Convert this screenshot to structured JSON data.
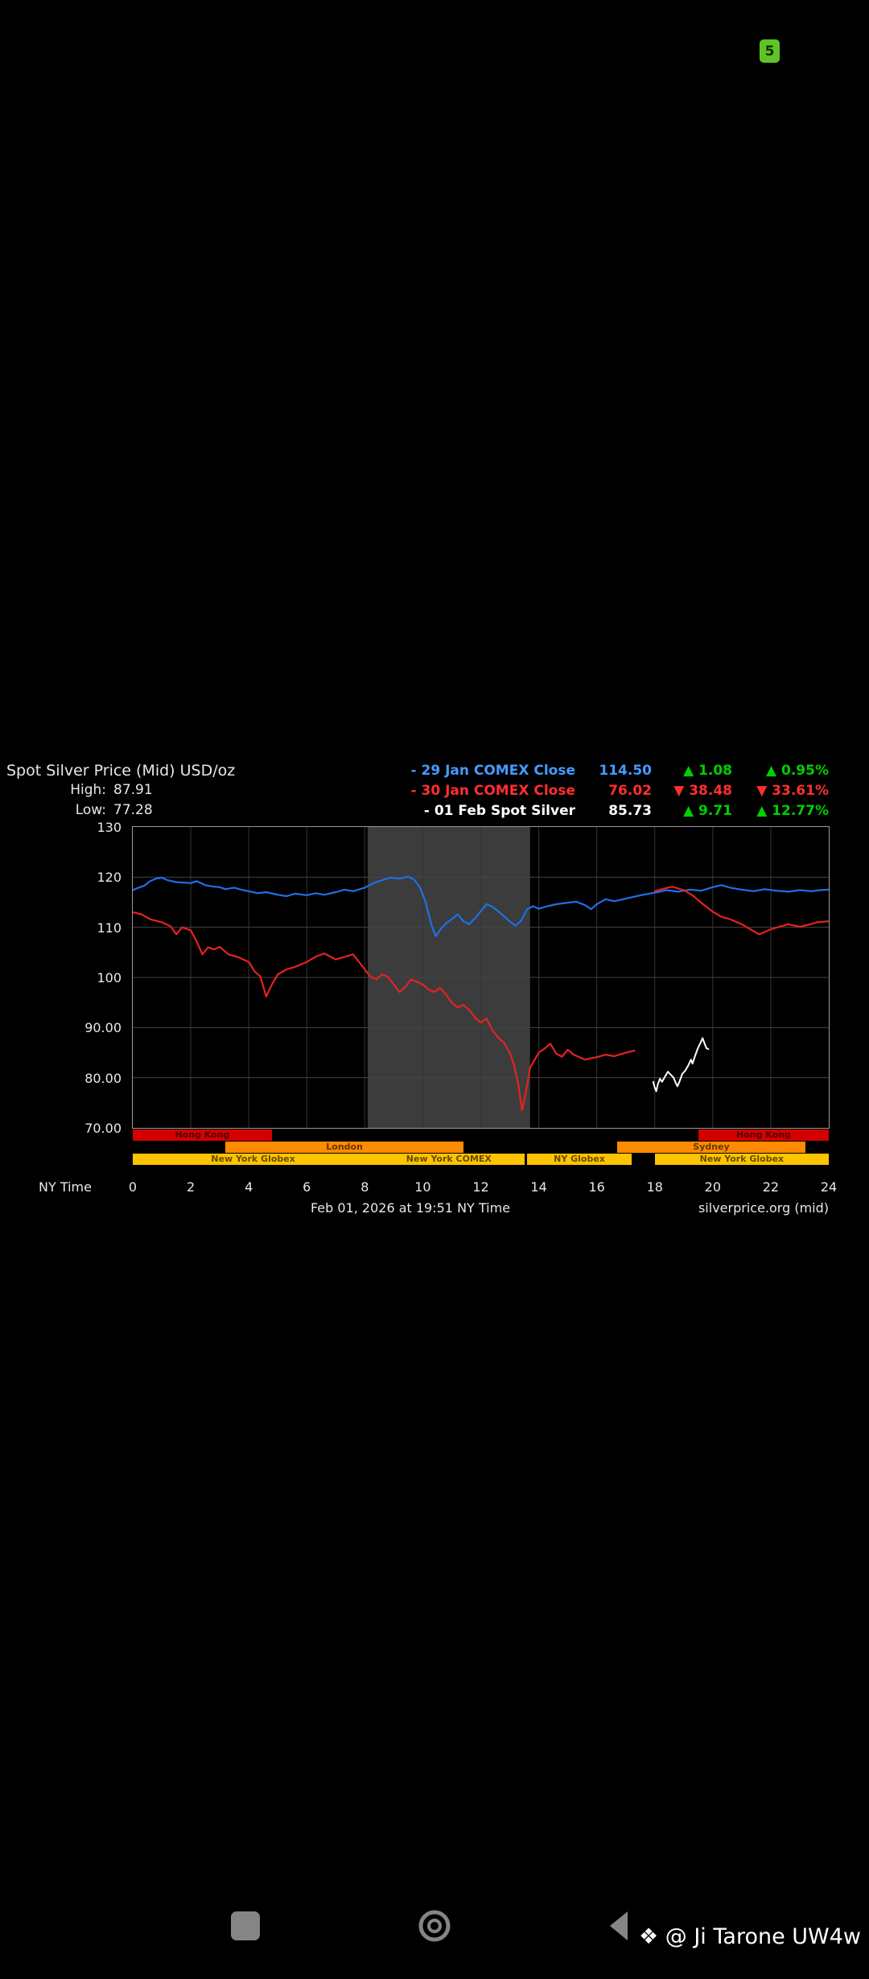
{
  "status_bar": {
    "badge": "5",
    "badge_color": "#5fc327"
  },
  "chart": {
    "title": "Spot Silver Price (Mid) USD/oz",
    "high_label": "High:",
    "high_value": "87.91",
    "low_label": "Low:",
    "low_value": "77.28",
    "legend": [
      {
        "label": "- 29 Jan COMEX Close",
        "value": "114.50",
        "change": "▲ 1.08",
        "pct": "▲ 0.95%",
        "text_color": "#459aff",
        "change_color": "#00cf00"
      },
      {
        "label": "- 30 Jan COMEX Close",
        "value": "76.02",
        "change": "▼ 38.48",
        "pct": "▼ 33.61%",
        "text_color": "#ff2f2f",
        "change_color": "#ff2f2f"
      },
      {
        "label": "- 01 Feb Spot Silver",
        "value": "85.73",
        "change": "▲ 9.71",
        "pct": "▲ 12.77%",
        "text_color": "#ffffff",
        "change_color": "#00cf00"
      }
    ],
    "x_axis_label": "NY Time",
    "footer_left": "Feb 01, 2026 at 19:51 NY Time",
    "footer_right": "silverprice.org (mid)"
  },
  "chart_data": {
    "type": "line",
    "title": "Spot Silver Price (Mid) USD/oz",
    "xlabel": "NY Time",
    "ylabel": "USD/oz",
    "xlim": [
      0,
      24
    ],
    "ylim": [
      70,
      130
    ],
    "grid": true,
    "legend_position": "top-right",
    "grid_v_color": "#343434",
    "grid_h_color": "#454545",
    "x_ticks": [
      "0",
      "2",
      "4",
      "6",
      "8",
      "10",
      "12",
      "14",
      "16",
      "18",
      "20",
      "22",
      "24"
    ],
    "y_ticks": [
      {
        "value": 130,
        "label": "130"
      },
      {
        "value": 120,
        "label": "120"
      },
      {
        "value": 110,
        "label": "110"
      },
      {
        "value": 100,
        "label": "100"
      },
      {
        "value": 90,
        "label": "90.00"
      },
      {
        "value": 80,
        "label": "80.00"
      },
      {
        "value": 70,
        "label": "70.00"
      }
    ],
    "highlight_band": {
      "from": 8.1,
      "to": 13.7,
      "color": "#3c3c3c"
    },
    "series": [
      {
        "id": "29jan",
        "name": "29 Jan COMEX Close",
        "color": "#1f6fe8",
        "width": 2.2,
        "close": 114.5,
        "change": 1.08,
        "change_pct": 0.95,
        "segments": [
          [
            [
              0,
              117.4
            ],
            [
              0.2,
              117.9
            ],
            [
              0.4,
              118.3
            ],
            [
              0.6,
              119.2
            ],
            [
              0.8,
              119.7
            ],
            [
              1,
              119.9
            ],
            [
              1.2,
              119.4
            ],
            [
              1.5,
              119
            ],
            [
              1.8,
              118.9
            ],
            [
              2,
              118.8
            ],
            [
              2.2,
              119.2
            ],
            [
              2.5,
              118.4
            ],
            [
              2.8,
              118.1
            ],
            [
              3,
              118
            ],
            [
              3.2,
              117.6
            ],
            [
              3.5,
              117.9
            ],
            [
              3.8,
              117.4
            ],
            [
              4,
              117.2
            ],
            [
              4.3,
              116.8
            ],
            [
              4.6,
              117
            ],
            [
              5,
              116.5
            ],
            [
              5.3,
              116.2
            ],
            [
              5.6,
              116.7
            ],
            [
              6,
              116.4
            ],
            [
              6.3,
              116.8
            ],
            [
              6.6,
              116.5
            ],
            [
              7,
              117
            ],
            [
              7.3,
              117.5
            ],
            [
              7.6,
              117.2
            ],
            [
              8,
              117.9
            ],
            [
              8.3,
              118.8
            ],
            [
              8.6,
              119.4
            ],
            [
              8.9,
              119.9
            ],
            [
              9.2,
              119.7
            ],
            [
              9.5,
              120.1
            ],
            [
              9.7,
              119.5
            ],
            [
              9.9,
              118
            ],
            [
              10.1,
              115
            ],
            [
              10.3,
              110.5
            ],
            [
              10.45,
              108.2
            ],
            [
              10.6,
              109.5
            ],
            [
              10.8,
              110.8
            ],
            [
              11,
              111.6
            ],
            [
              11.2,
              112.6
            ],
            [
              11.4,
              111.2
            ],
            [
              11.6,
              110.6
            ],
            [
              11.8,
              111.8
            ],
            [
              12,
              113.2
            ],
            [
              12.2,
              114.6
            ],
            [
              12.4,
              114.1
            ],
            [
              12.6,
              113.2
            ],
            [
              12.8,
              112.2
            ],
            [
              13,
              111.2
            ],
            [
              13.2,
              110.3
            ],
            [
              13.4,
              111.4
            ],
            [
              13.6,
              113.6
            ],
            [
              13.8,
              114.2
            ],
            [
              14,
              113.7
            ],
            [
              14.3,
              114.2
            ],
            [
              14.6,
              114.6
            ],
            [
              15,
              114.9
            ],
            [
              15.3,
              115.1
            ],
            [
              15.6,
              114.4
            ],
            [
              15.8,
              113.6
            ],
            [
              16,
              114.6
            ],
            [
              16.3,
              115.6
            ],
            [
              16.6,
              115.2
            ],
            [
              17,
              115.7
            ],
            [
              17.3,
              116.1
            ],
            [
              17.6,
              116.5
            ],
            [
              18,
              116.9
            ],
            [
              18.4,
              117.4
            ],
            [
              18.8,
              117.1
            ],
            [
              19.2,
              117.5
            ],
            [
              19.6,
              117.3
            ],
            [
              20,
              118
            ],
            [
              20.3,
              118.4
            ],
            [
              20.6,
              117.9
            ],
            [
              21,
              117.5
            ],
            [
              21.4,
              117.2
            ],
            [
              21.8,
              117.6
            ],
            [
              22.2,
              117.3
            ],
            [
              22.6,
              117.1
            ],
            [
              23,
              117.4
            ],
            [
              23.4,
              117.2
            ],
            [
              23.7,
              117.4
            ],
            [
              24,
              117.5
            ]
          ]
        ]
      },
      {
        "id": "30jan",
        "name": "30 Jan COMEX Close",
        "color": "#e62222",
        "width": 2.2,
        "close": 76.02,
        "change": -38.48,
        "change_pct": -33.61,
        "segments": [
          [
            [
              0,
              113
            ],
            [
              0.3,
              112.6
            ],
            [
              0.6,
              111.6
            ],
            [
              1,
              111
            ],
            [
              1.3,
              110.2
            ],
            [
              1.5,
              108.6
            ],
            [
              1.7,
              110
            ],
            [
              2,
              109.4
            ],
            [
              2.2,
              107.2
            ],
            [
              2.4,
              104.6
            ],
            [
              2.6,
              106
            ],
            [
              2.8,
              105.6
            ],
            [
              3,
              106.1
            ],
            [
              3.3,
              104.6
            ],
            [
              3.6,
              104.1
            ],
            [
              4,
              103.1
            ],
            [
              4.2,
              101.2
            ],
            [
              4.4,
              100.2
            ],
            [
              4.6,
              96.2
            ],
            [
              4.8,
              98.6
            ],
            [
              5,
              100.6
            ],
            [
              5.3,
              101.6
            ],
            [
              5.6,
              102.1
            ],
            [
              6,
              103.1
            ],
            [
              6.3,
              104.1
            ],
            [
              6.6,
              104.8
            ],
            [
              7,
              103.6
            ],
            [
              7.3,
              104.1
            ],
            [
              7.6,
              104.6
            ],
            [
              8,
              101.6
            ],
            [
              8.2,
              100.1
            ],
            [
              8.4,
              99.6
            ],
            [
              8.6,
              100.6
            ],
            [
              8.8,
              100.1
            ],
            [
              9,
              98.6
            ],
            [
              9.2,
              97.1
            ],
            [
              9.4,
              98.1
            ],
            [
              9.6,
              99.6
            ],
            [
              9.8,
              99.1
            ],
            [
              10,
              98.6
            ],
            [
              10.2,
              97.6
            ],
            [
              10.4,
              97.1
            ],
            [
              10.6,
              97.9
            ],
            [
              10.8,
              96.6
            ],
            [
              11,
              95
            ],
            [
              11.2,
              94
            ],
            [
              11.4,
              94.5
            ],
            [
              11.6,
              93.5
            ],
            [
              11.8,
              92
            ],
            [
              12,
              91
            ],
            [
              12.2,
              91.8
            ],
            [
              12.4,
              89.5
            ],
            [
              12.6,
              88
            ],
            [
              12.8,
              87
            ],
            [
              13,
              85
            ],
            [
              13.15,
              82.5
            ],
            [
              13.3,
              78.5
            ],
            [
              13.42,
              73.5
            ],
            [
              13.55,
              77
            ],
            [
              13.7,
              82
            ],
            [
              13.85,
              83.5
            ],
            [
              14,
              85
            ],
            [
              14.2,
              85.8
            ],
            [
              14.4,
              86.8
            ],
            [
              14.6,
              84.8
            ],
            [
              14.8,
              84.2
            ],
            [
              15,
              85.6
            ],
            [
              15.2,
              84.6
            ],
            [
              15.4,
              84.1
            ],
            [
              15.6,
              83.6
            ],
            [
              15.8,
              83.9
            ],
            [
              16,
              84.1
            ],
            [
              16.3,
              84.6
            ],
            [
              16.6,
              84.3
            ],
            [
              17,
              85
            ],
            [
              17.3,
              85.4
            ]
          ],
          [
            [
              18,
              117.2
            ],
            [
              18.3,
              117.7
            ],
            [
              18.6,
              118.1
            ],
            [
              19,
              117.4
            ],
            [
              19.3,
              116.4
            ],
            [
              19.6,
              114.9
            ],
            [
              20,
              113.1
            ],
            [
              20.3,
              112.1
            ],
            [
              20.6,
              111.6
            ],
            [
              21,
              110.6
            ],
            [
              21.3,
              109.6
            ],
            [
              21.6,
              108.6
            ],
            [
              22,
              109.6
            ],
            [
              22.3,
              110.1
            ],
            [
              22.6,
              110.6
            ],
            [
              23,
              110.1
            ],
            [
              23.3,
              110.5
            ],
            [
              23.6,
              111
            ],
            [
              24,
              111.2
            ]
          ]
        ]
      },
      {
        "id": "01feb",
        "name": "01 Feb Spot Silver",
        "color": "#ffffff",
        "width": 2,
        "last": 85.73,
        "high": 87.91,
        "low": 77.28,
        "change": 9.71,
        "change_pct": 12.77,
        "segments": [
          [
            [
              17.95,
              79.2
            ],
            [
              18,
              78
            ],
            [
              18.05,
              77.3
            ],
            [
              18.1,
              78.6
            ],
            [
              18.18,
              79.8
            ],
            [
              18.25,
              79.2
            ],
            [
              18.35,
              80.2
            ],
            [
              18.45,
              81.2
            ],
            [
              18.55,
              80.6
            ],
            [
              18.65,
              80
            ],
            [
              18.72,
              79
            ],
            [
              18.78,
              78.3
            ],
            [
              18.85,
              79.2
            ],
            [
              18.95,
              80.8
            ],
            [
              19.05,
              81.4
            ],
            [
              19.15,
              82.4
            ],
            [
              19.25,
              83.6
            ],
            [
              19.3,
              82.8
            ],
            [
              19.38,
              84.2
            ],
            [
              19.48,
              85.8
            ],
            [
              19.58,
              87
            ],
            [
              19.65,
              87.9
            ],
            [
              19.72,
              86.8
            ],
            [
              19.78,
              85.9
            ],
            [
              19.85,
              85.7
            ]
          ]
        ]
      }
    ],
    "session_rows": [
      {
        "color": "#d40000",
        "segments": [
          {
            "from": 0,
            "to": 4.8,
            "label": "Hong Kong"
          },
          {
            "from": 19.5,
            "to": 24,
            "label": "Hong Kong"
          }
        ]
      },
      {
        "color": "#ff8c00",
        "segments": [
          {
            "from": 3.2,
            "to": 11.4,
            "label": "London"
          },
          {
            "from": 16.7,
            "to": 23.2,
            "label": "Sydney"
          }
        ]
      },
      {
        "color": "#ffc400",
        "segments": [
          {
            "from": 0,
            "to": 8.3,
            "label": "New York Globex"
          },
          {
            "from": 8.3,
            "to": 13.5,
            "label": "New York COMEX"
          },
          {
            "from": 13.6,
            "to": 17.2,
            "label": "NY Globex"
          },
          {
            "from": 18,
            "to": 24,
            "label": "New York Globex"
          }
        ]
      }
    ]
  },
  "nav_bar": {
    "icons": [
      "recents-square-icon",
      "home-circle-icon",
      "back-triangle-icon"
    ]
  },
  "watermark": "❖ @ Ji Tarone UW4w"
}
